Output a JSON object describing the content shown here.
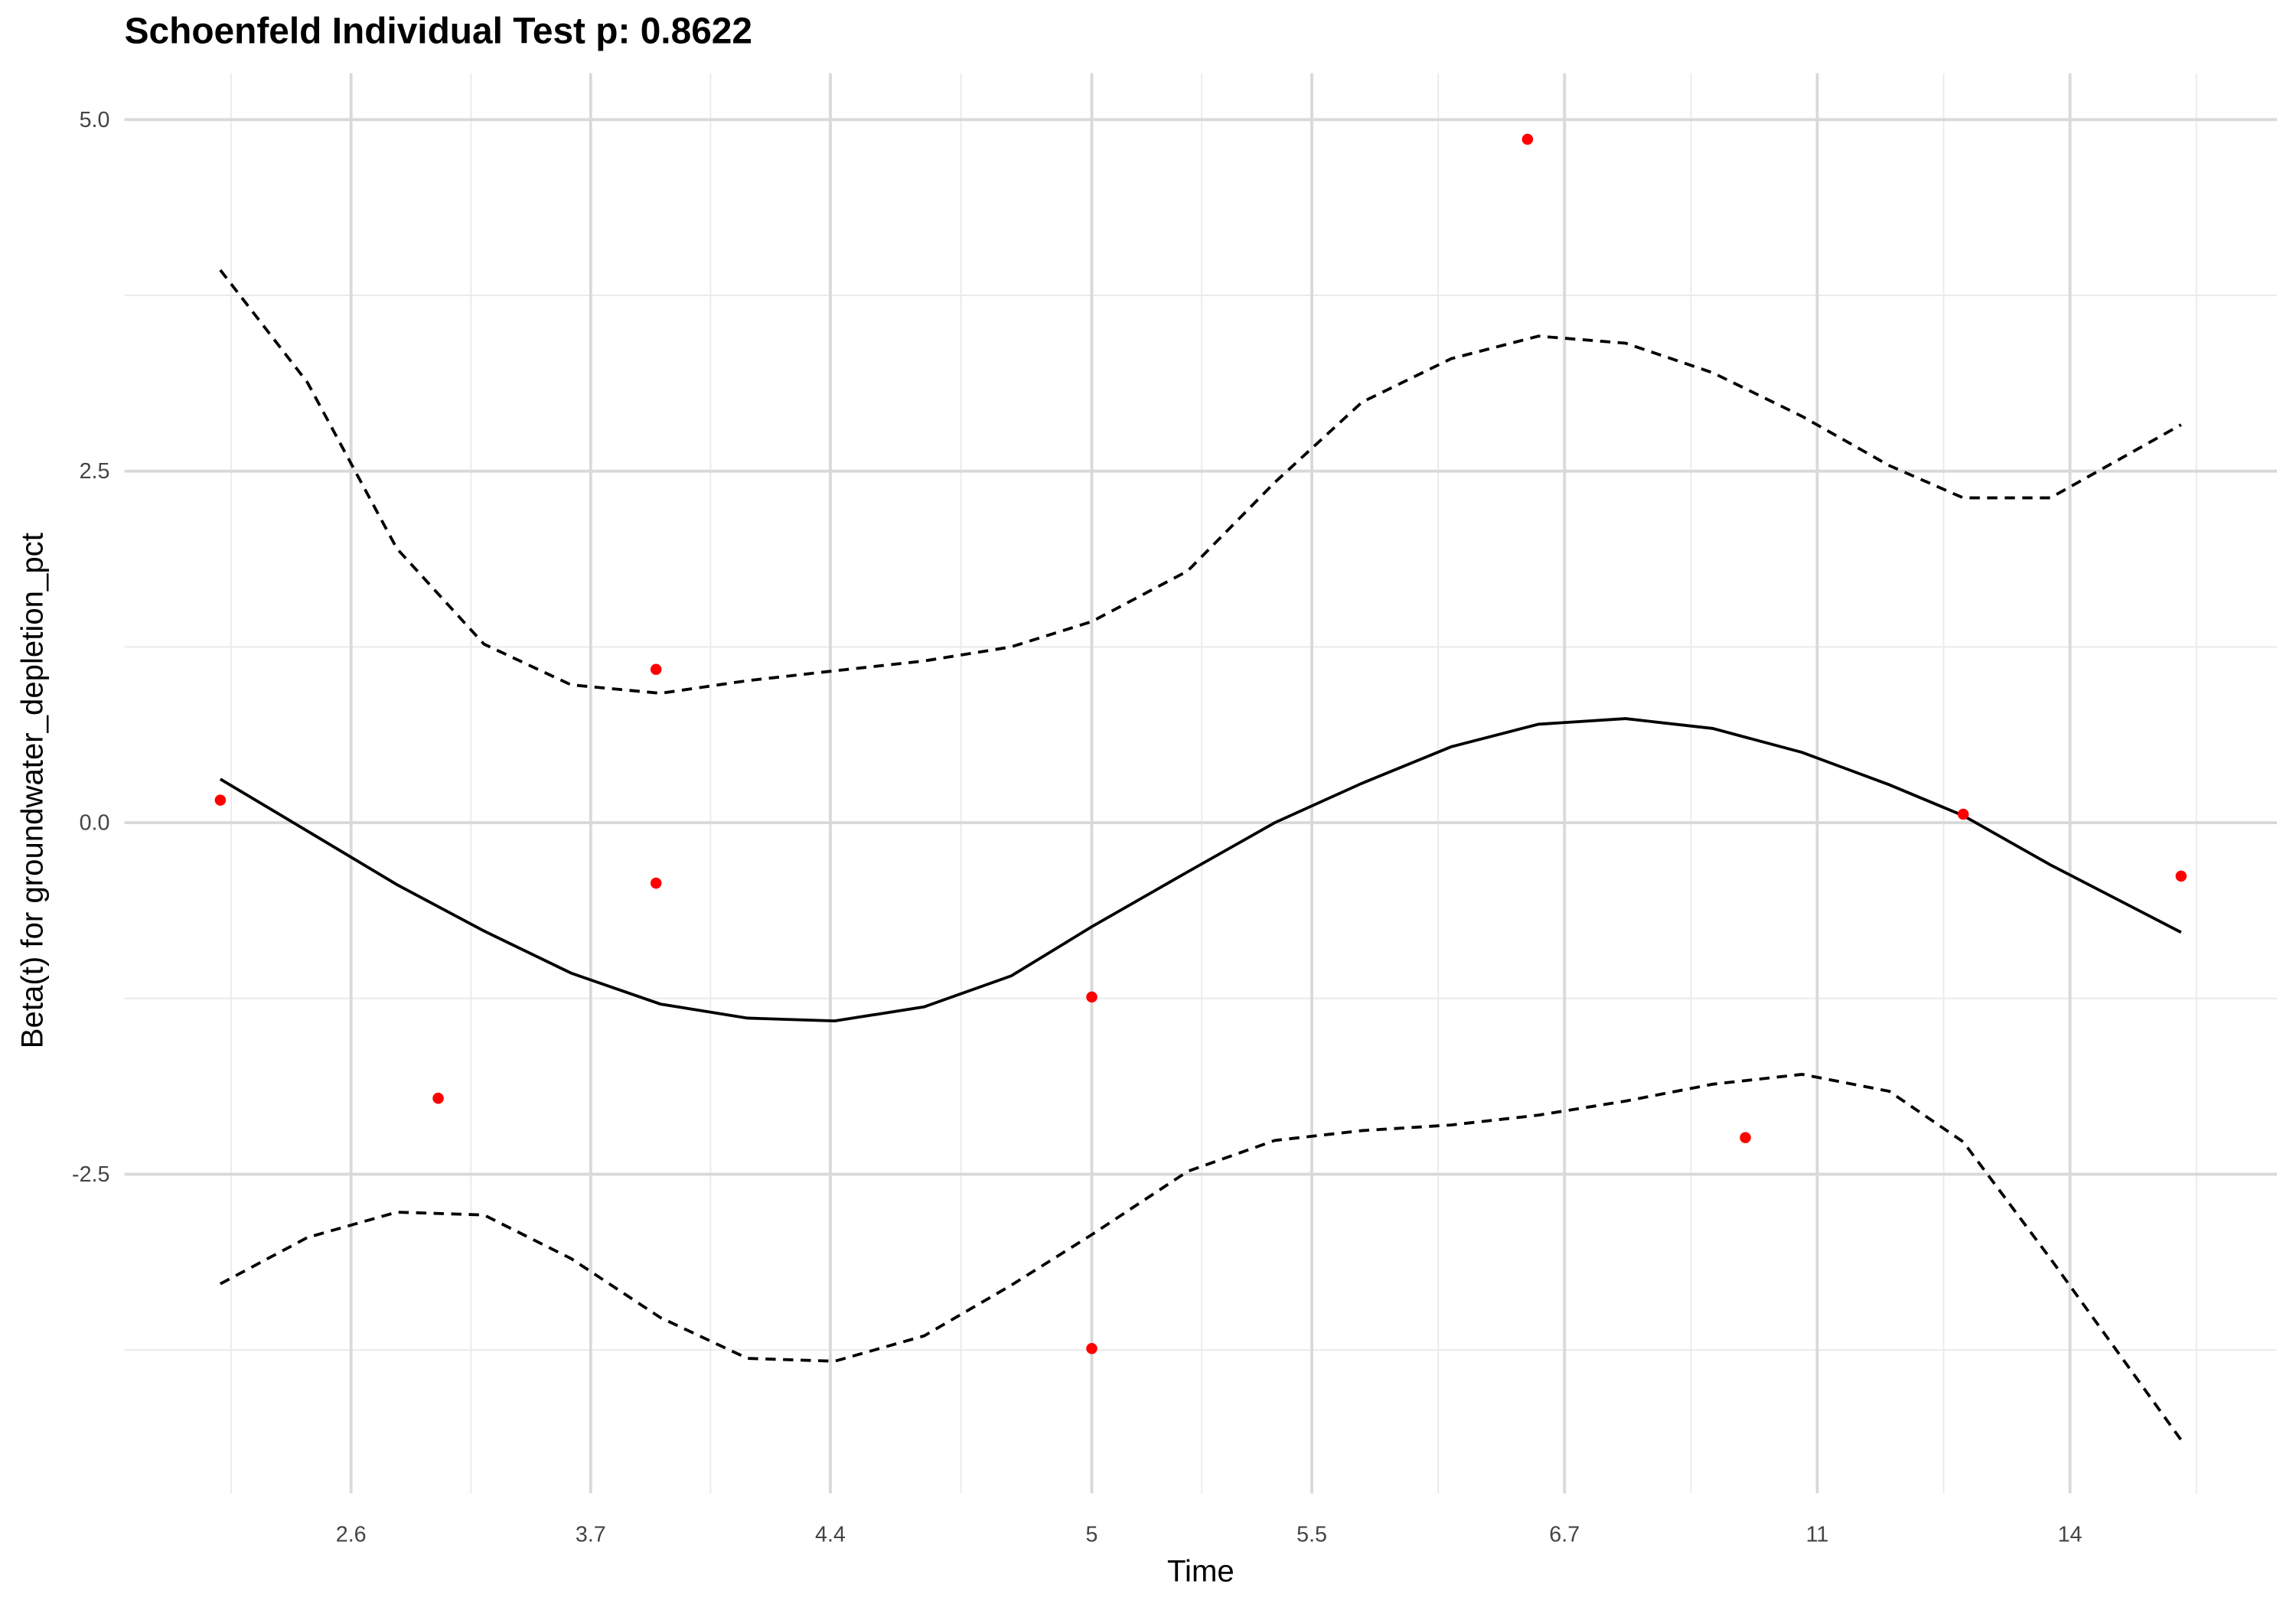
{
  "chart_data": {
    "type": "scatter",
    "title": "Schoenfeld Individual Test p: 0.8622",
    "x_label": "Time",
    "y_label": "Beta(t) for groundwater_depletion_pct",
    "xlim": [
      0.56,
      10.44
    ],
    "ylim": [
      -4.77,
      5.33
    ],
    "xticks": [
      {
        "value": 1.6,
        "label": "2.6"
      },
      {
        "value": 2.7,
        "label": "3.7"
      },
      {
        "value": 3.8,
        "label": "4.4"
      },
      {
        "value": 5.0,
        "label": "5"
      },
      {
        "value": 6.01,
        "label": "5.5"
      },
      {
        "value": 7.17,
        "label": "6.7"
      },
      {
        "value": 8.33,
        "label": "11"
      },
      {
        "value": 9.49,
        "label": "14"
      }
    ],
    "yticks": [
      {
        "value": -2.5,
        "label": "-2.5"
      },
      {
        "value": 0,
        "label": "0.0"
      },
      2.5,
      {
        "value": 5,
        "label": "5.0"
      }
    ],
    "grid": true,
    "series": [
      {
        "type": "scatter",
        "color": "#ff0000",
        "x": [
          1,
          2,
          3,
          3,
          5,
          5,
          7,
          8,
          9,
          10
        ],
        "values": [
          0.16,
          -1.96,
          1.09,
          -0.43,
          -1.24,
          -3.74,
          4.86,
          -2.24,
          0.06,
          -0.38
        ]
      },
      {
        "type": "line",
        "color": "#000000",
        "linestyle": "solid",
        "x": [
          1.0,
          1.4,
          1.81,
          2.21,
          2.61,
          3.02,
          3.42,
          3.82,
          4.23,
          4.63,
          5.0,
          5.44,
          5.84,
          6.24,
          6.65,
          7.05,
          7.45,
          7.85,
          8.26,
          8.66,
          9.0,
          9.4,
          10.0
        ],
        "values": [
          0.31,
          -0.06,
          -0.44,
          -0.77,
          -1.07,
          -1.29,
          -1.39,
          -1.41,
          -1.31,
          -1.09,
          -0.74,
          -0.35,
          0.0,
          0.28,
          0.54,
          0.7,
          0.74,
          0.67,
          0.5,
          0.27,
          0.05,
          -0.3,
          -0.78
        ]
      },
      {
        "type": "line",
        "color": "#000000",
        "linestyle": "dashed",
        "x": [
          1.0,
          1.4,
          1.81,
          2.21,
          2.61,
          3.02,
          3.42,
          3.82,
          4.23,
          4.63,
          5.0,
          5.44,
          5.84,
          6.24,
          6.65,
          7.05,
          7.45,
          7.85,
          8.26,
          8.66,
          9.0,
          9.4,
          10.0
        ],
        "values": [
          3.93,
          3.13,
          1.95,
          1.27,
          0.98,
          0.92,
          1.01,
          1.08,
          1.15,
          1.25,
          1.43,
          1.79,
          2.42,
          2.99,
          3.3,
          3.46,
          3.41,
          3.2,
          2.89,
          2.54,
          2.31,
          2.31,
          2.83
        ]
      },
      {
        "type": "line",
        "color": "#000000",
        "linestyle": "dashed",
        "x": [
          1.0,
          1.4,
          1.81,
          2.21,
          2.61,
          3.02,
          3.42,
          3.82,
          4.23,
          4.63,
          5.0,
          5.44,
          5.84,
          6.24,
          6.65,
          7.05,
          7.45,
          7.85,
          8.26,
          8.66,
          9.0,
          9.4,
          10.0
        ],
        "values": [
          -3.28,
          -2.95,
          -2.77,
          -2.79,
          -3.1,
          -3.52,
          -3.81,
          -3.83,
          -3.65,
          -3.29,
          -2.93,
          -2.48,
          -2.26,
          -2.19,
          -2.15,
          -2.08,
          -1.98,
          -1.86,
          -1.79,
          -1.91,
          -2.27,
          -3.1,
          -4.39
        ]
      }
    ]
  }
}
